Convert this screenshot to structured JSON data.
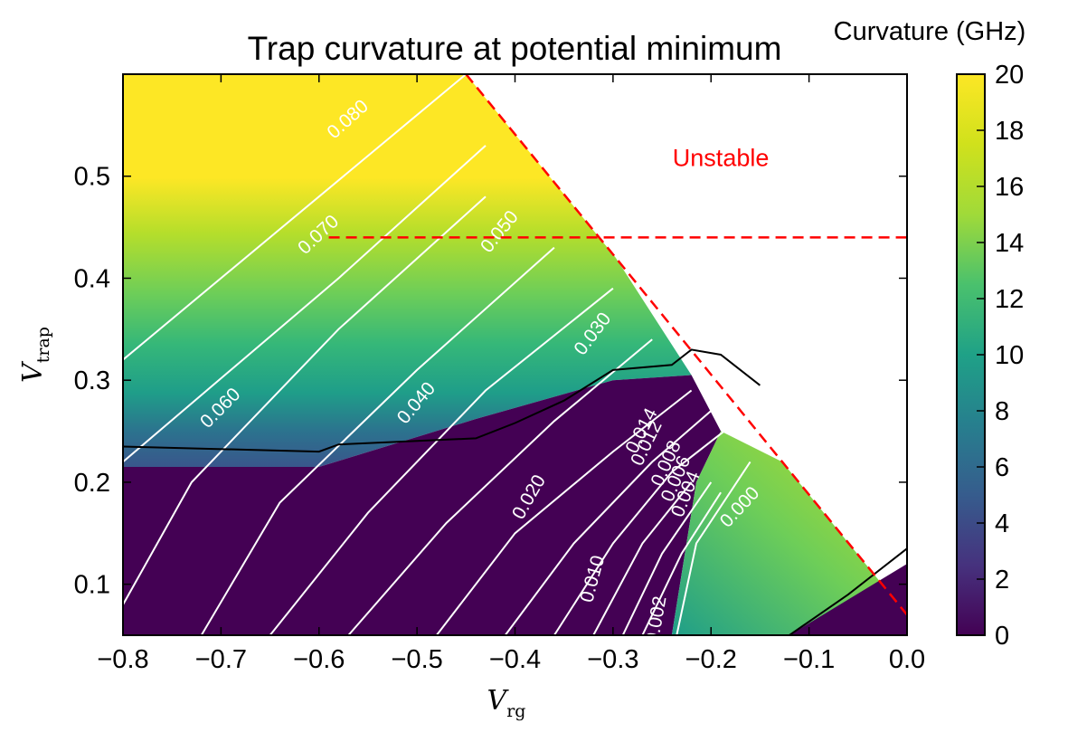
{
  "chart_data": {
    "type": "heatmap",
    "title": "Trap curvature at potential minimum",
    "xlabel": "V",
    "xlabel_sub": "rg",
    "ylabel": "V",
    "ylabel_sub": "trap",
    "xlim": [
      -0.8,
      0.0
    ],
    "ylim": [
      0.05,
      0.6
    ],
    "x_ticks": [
      -0.8,
      -0.7,
      -0.6,
      -0.5,
      -0.4,
      -0.3,
      -0.2,
      -0.1,
      0.0
    ],
    "x_tick_labels": [
      "−0.8",
      "−0.7",
      "−0.6",
      "−0.5",
      "−0.4",
      "−0.3",
      "−0.2",
      "−0.1",
      "0.0"
    ],
    "y_ticks": [
      0.1,
      0.2,
      0.3,
      0.4,
      0.5
    ],
    "y_tick_labels": [
      "0.1",
      "0.2",
      "0.3",
      "0.4",
      "0.5"
    ],
    "colorbar": {
      "label": "Curvature (GHz)",
      "min": 0,
      "max": 20,
      "ticks": [
        0,
        2,
        4,
        6,
        8,
        10,
        12,
        14,
        16,
        18,
        20
      ],
      "tick_labels": [
        "0",
        "2",
        "4",
        "6",
        "8",
        "10",
        "12",
        "14",
        "16",
        "18",
        "20"
      ],
      "colormap": "viridis"
    },
    "stability_boundary": {
      "points": [
        [
          -0.45,
          0.6
        ],
        [
          0.0,
          0.07
        ]
      ],
      "color": "#ff0000",
      "style": "dashed"
    },
    "threshold_line": {
      "x_range": [
        -0.59,
        0.0
      ],
      "y": 0.44,
      "color": "#ff0000",
      "style": "dashed"
    },
    "annotation": {
      "text": "Unstable",
      "x": -0.19,
      "y": 0.51,
      "color": "#ff0000"
    },
    "white_contour_levels": [
      "0.080",
      "0.070",
      "0.060",
      "0.050",
      "0.040",
      "0.030",
      "0.020",
      "0.014",
      "0.012",
      "0.010",
      "0.008",
      "0.006",
      "0.004",
      "0.002",
      "0.000"
    ],
    "white_contour_labels": [
      {
        "text": "0.080",
        "x": -0.57,
        "y": 0.555,
        "angle": -42
      },
      {
        "text": "0.070",
        "x": -0.6,
        "y": 0.442,
        "angle": -43
      },
      {
        "text": "0.060",
        "x": -0.7,
        "y": 0.272,
        "angle": -45
      },
      {
        "text": "0.050",
        "x": -0.415,
        "y": 0.445,
        "angle": -51
      },
      {
        "text": "0.040",
        "x": -0.5,
        "y": 0.277,
        "angle": -50
      },
      {
        "text": "0.030",
        "x": -0.32,
        "y": 0.345,
        "angle": -53
      },
      {
        "text": "0.020",
        "x": -0.385,
        "y": 0.185,
        "angle": -60
      },
      {
        "text": "0.014",
        "x": -0.27,
        "y": 0.25,
        "angle": -63
      },
      {
        "text": "0.012",
        "x": -0.265,
        "y": 0.238,
        "angle": -64
      },
      {
        "text": "0.010",
        "x": -0.32,
        "y": 0.105,
        "angle": -75
      },
      {
        "text": "0.008",
        "x": -0.245,
        "y": 0.218,
        "angle": -66
      },
      {
        "text": "0.006",
        "x": -0.235,
        "y": 0.203,
        "angle": -67
      },
      {
        "text": "0.004",
        "x": -0.225,
        "y": 0.188,
        "angle": -68
      },
      {
        "text": "0.002",
        "x": -0.255,
        "y": 0.065,
        "angle": -80
      },
      {
        "text": "0.000",
        "x": -0.17,
        "y": 0.175,
        "angle": -47
      }
    ],
    "black_contour_level": "0.000",
    "grid": false
  }
}
